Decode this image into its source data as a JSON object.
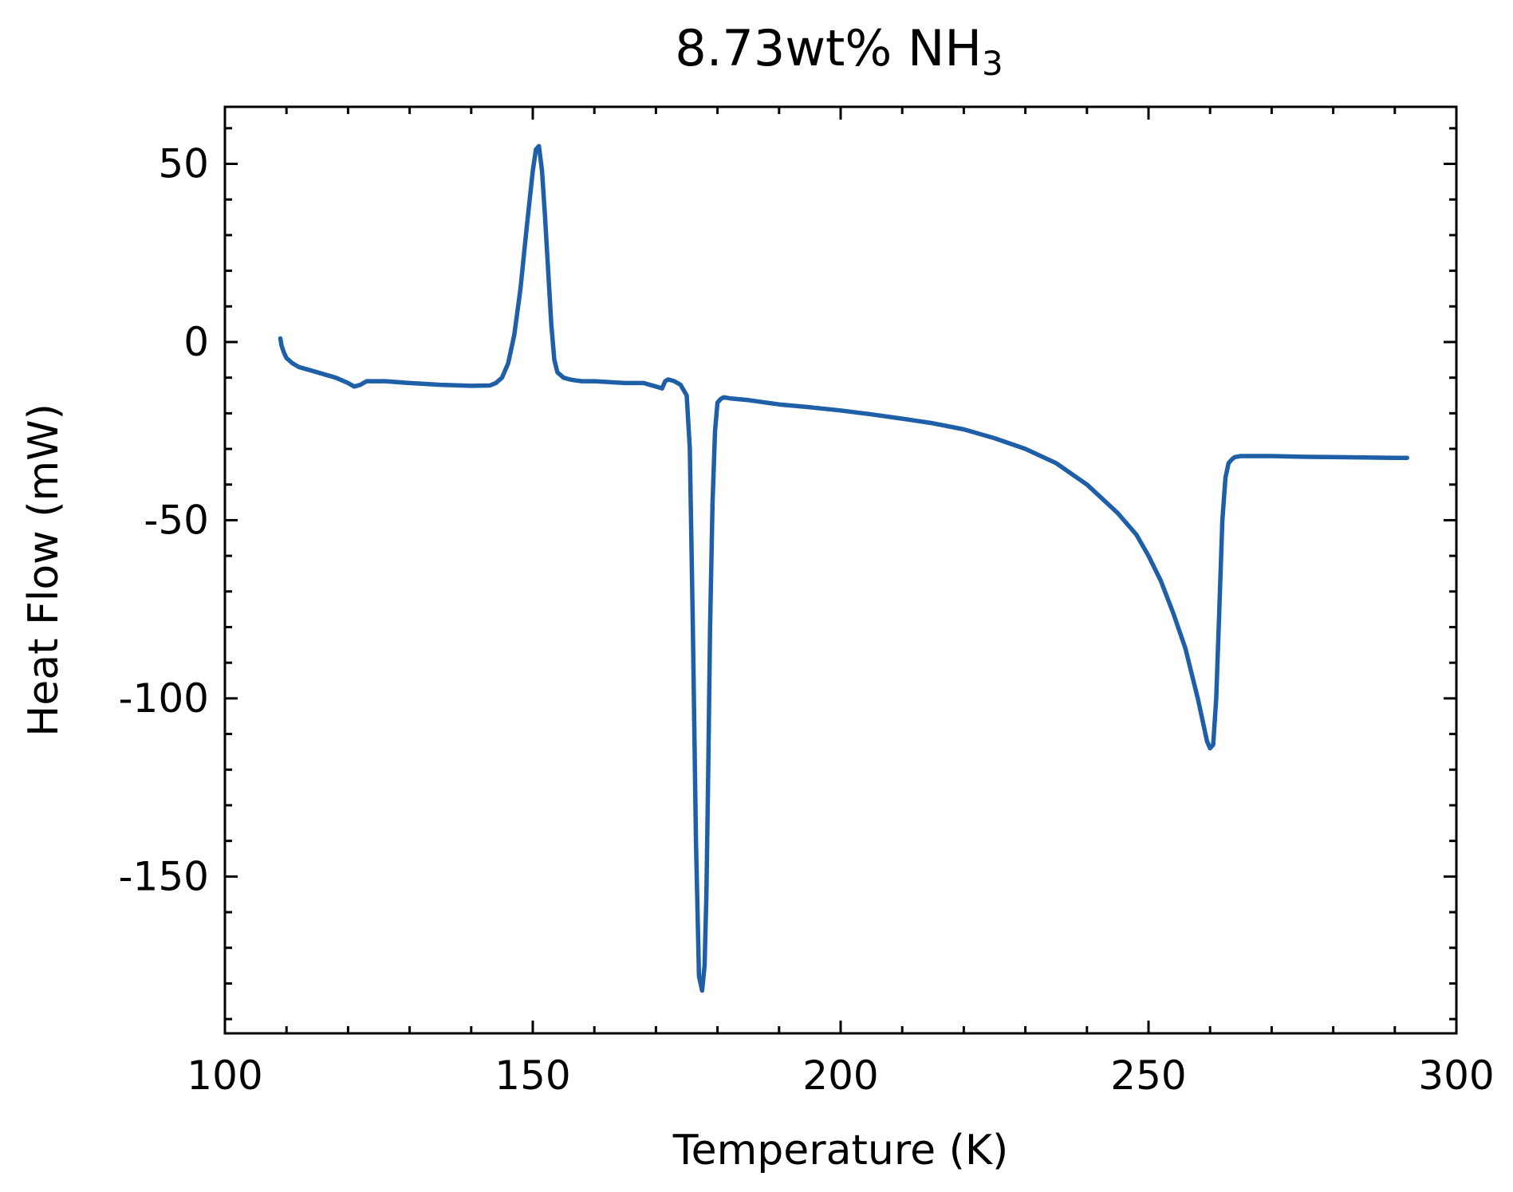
{
  "chart_data": {
    "type": "line",
    "title": "8.73wt% NH",
    "title_subscript": "3",
    "xlabel": "Temperature (K)",
    "ylabel": "Heat Flow (mW)",
    "xlim": [
      100,
      300
    ],
    "ylim": [
      -194,
      66
    ],
    "x_ticks": [
      100,
      150,
      200,
      250,
      300
    ],
    "x_tick_labels": [
      "100",
      "150",
      "200",
      "250",
      "300"
    ],
    "x_minor_step": 10,
    "y_ticks": [
      50,
      0,
      -50,
      -100,
      -150
    ],
    "y_tick_labels": [
      "50",
      "0",
      "-50",
      "-100",
      "-150"
    ],
    "y_minor_step": 10,
    "grid": false,
    "line_color": "#1f5fa8",
    "series": [
      {
        "x": [
          109,
          109.2,
          109.6,
          110,
          111,
          112,
          114,
          116,
          118,
          120,
          121,
          122,
          123,
          124,
          126,
          130,
          135,
          140,
          143,
          144,
          145,
          146,
          147,
          148,
          149,
          150,
          150.5,
          151,
          151.5,
          152,
          152.5,
          153,
          153.5,
          154,
          155,
          156,
          157,
          158,
          160,
          165,
          168,
          170,
          171,
          171.5,
          172,
          173,
          174,
          175,
          175.5,
          176,
          176.5,
          177,
          177.5,
          177.9,
          178.2,
          178.5,
          178.8,
          179.2,
          179.6,
          180,
          180.5,
          181,
          182,
          185,
          190,
          195,
          200,
          205,
          210,
          215,
          220,
          225,
          230,
          235,
          240,
          245,
          248,
          250,
          252,
          254,
          256,
          257,
          258,
          259,
          259.5,
          260,
          260.5,
          261,
          261.5,
          262,
          262.5,
          263,
          263.5,
          264,
          265,
          266,
          268,
          270,
          275,
          280,
          285,
          290,
          292
        ],
        "y": [
          1,
          -1,
          -3,
          -4.5,
          -6,
          -7,
          -8,
          -9,
          -10,
          -11.5,
          -12.5,
          -12,
          -11,
          -11,
          -11,
          -11.5,
          -12,
          -12.3,
          -12.2,
          -11.5,
          -10,
          -6,
          2,
          15,
          32,
          48,
          54,
          55,
          48,
          35,
          20,
          5,
          -5,
          -8.5,
          -10,
          -10.5,
          -10.8,
          -11,
          -11,
          -11.5,
          -11.5,
          -12.5,
          -13,
          -11,
          -10.5,
          -11,
          -12,
          -15,
          -30,
          -80,
          -140,
          -178,
          -182,
          -175,
          -155,
          -120,
          -80,
          -45,
          -25,
          -17,
          -16,
          -15.5,
          -15.8,
          -16.3,
          -17.5,
          -18.3,
          -19.2,
          -20.3,
          -21.5,
          -22.8,
          -24.5,
          -27,
          -30,
          -34,
          -40,
          -48,
          -54,
          -60,
          -67,
          -76,
          -86,
          -93,
          -100,
          -108,
          -112,
          -114,
          -113,
          -100,
          -75,
          -50,
          -38,
          -34,
          -33,
          -32.3,
          -32,
          -32,
          -32,
          -32,
          -32.2,
          -32.3,
          -32.4,
          -32.5,
          -32.5
        ]
      }
    ]
  }
}
